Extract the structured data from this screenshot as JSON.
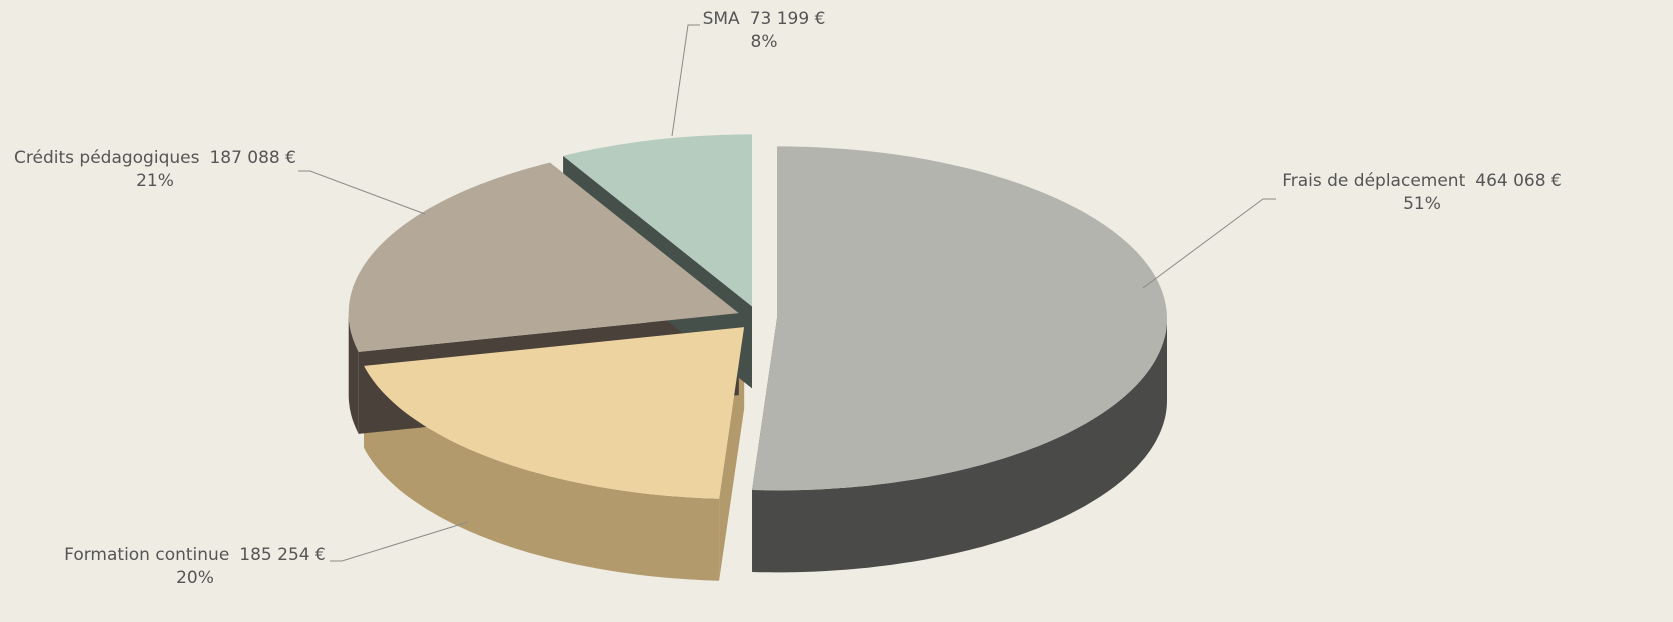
{
  "chart_data": {
    "type": "pie",
    "categories": [
      "Frais de déplacement",
      "Formation continue",
      "Crédits pédagogiques",
      "SMA"
    ],
    "values": [
      464068,
      185254,
      187088,
      73199
    ],
    "value_labels": [
      "464 068 €",
      "185 254 €",
      "187 088 €",
      "73 199 €"
    ],
    "percents": [
      51,
      20,
      21,
      8
    ],
    "percent_labels": [
      "51%",
      "20%",
      "21%",
      "8%"
    ],
    "colors": [
      "#b4b4ae",
      "#edd3a0",
      "#b4a998",
      "#b6ccbe"
    ],
    "side_colors": [
      "#4a4a48",
      "#b39a6c",
      "#4a413a",
      "#46504a"
    ]
  }
}
